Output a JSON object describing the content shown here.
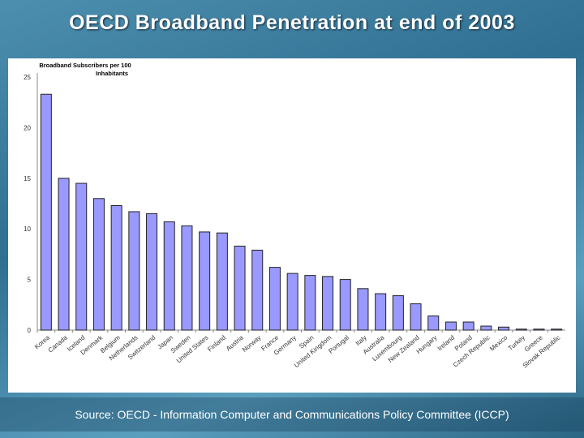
{
  "slide": {
    "title": "OECD Broadband Penetration at end of  2003",
    "source": "Source: OECD - Information Computer and Communications Policy Committee (ICCP)"
  },
  "chart_data": {
    "type": "bar",
    "title": "Broadband Subscribers per 100 Inhabitants",
    "xlabel": "",
    "ylabel": "",
    "ylim": [
      0,
      25
    ],
    "yticks": [
      0,
      5,
      10,
      15,
      20,
      25
    ],
    "grid": false,
    "bar_color": "#9999ff",
    "categories": [
      "Korea",
      "Canada",
      "Iceland",
      "Denmark",
      "Belgium",
      "Netherlands",
      "Switzerland",
      "Japan",
      "Sweden",
      "United States",
      "Finland",
      "Austria",
      "Norway",
      "France",
      "Germany",
      "Spain",
      "United Kingdom",
      "Portugal",
      "Italy",
      "Australia",
      "Luxembourg",
      "New Zealand",
      "Hungary",
      "Ireland",
      "Poland",
      "Czech Republic",
      "Mexico",
      "Turkey",
      "Greece",
      "Slovak Republic"
    ],
    "values": [
      23.3,
      15.0,
      14.5,
      13.0,
      12.3,
      11.7,
      11.5,
      10.7,
      10.3,
      9.7,
      9.6,
      8.3,
      7.9,
      6.2,
      5.6,
      5.4,
      5.3,
      5.0,
      4.1,
      3.6,
      3.4,
      2.6,
      1.4,
      0.8,
      0.8,
      0.4,
      0.3,
      0.1,
      0.1,
      0.1
    ]
  }
}
